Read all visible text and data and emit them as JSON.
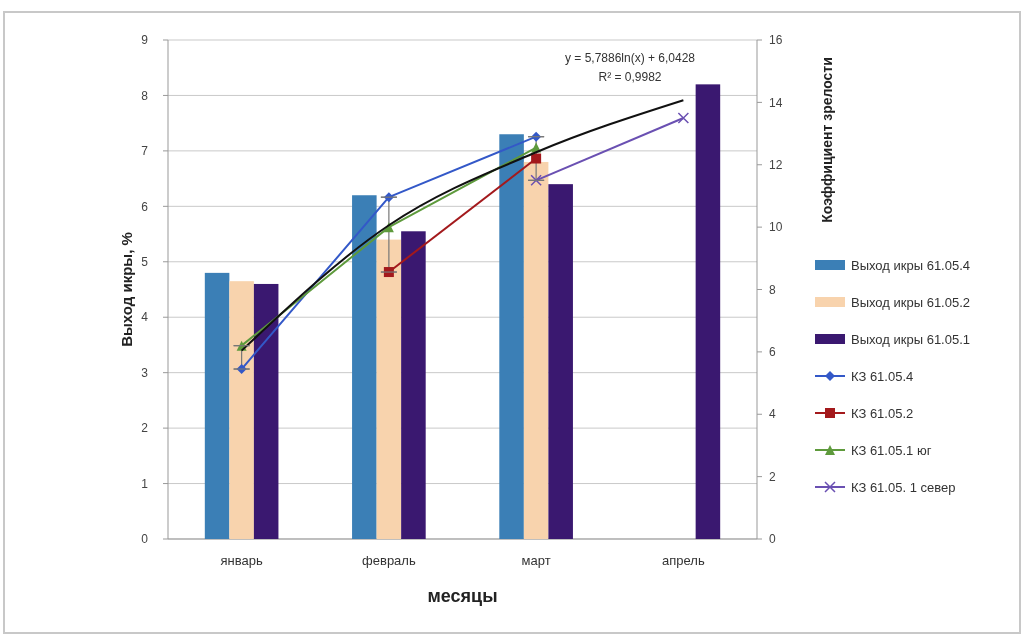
{
  "chart_data": {
    "type": "bar",
    "xlabel": "месяцы",
    "ylabel": "Выход икры, %",
    "y2label": "Коэффициент зрелости",
    "categories": [
      "январь",
      "февраль",
      "март",
      "апрель"
    ],
    "series": [
      {
        "name": "Выход икры 61.05.4",
        "color": "#3b7fb6",
        "values": [
          4.8,
          6.2,
          7.3,
          null
        ]
      },
      {
        "name": "Выход икры 61.05.2",
        "color": "#f8d3ad",
        "values": [
          4.65,
          5.4,
          6.8,
          null
        ]
      },
      {
        "name": "Выход икры 61.05.1",
        "color": "#3a1870",
        "values": [
          4.6,
          5.55,
          6.4,
          8.2
        ]
      },
      {
        "name": "КЗ 61.05.4",
        "type": "line",
        "axis": "y2",
        "color": "#3358c8",
        "marker": "diamond",
        "values": [
          5.45,
          10.96,
          12.9,
          null
        ],
        "errors": [
          [
            5.45,
            6.2
          ],
          [
            8.56,
            10.96
          ],
          [
            11.5,
            12.9
          ],
          null
        ]
      },
      {
        "name": "КЗ 61.05.2",
        "type": "line",
        "axis": "y2",
        "color": "#a3191c",
        "marker": "square",
        "values": [
          null,
          8.56,
          12.2,
          null
        ]
      },
      {
        "name": "КЗ 61.05.1 юг",
        "type": "line",
        "axis": "y2",
        "color": "#5e9a3c",
        "marker": "triangle",
        "values": [
          6.2,
          10.0,
          12.55,
          null
        ]
      },
      {
        "name": "КЗ 61.05. 1 север",
        "type": "line",
        "axis": "y2",
        "color": "#6a50b2",
        "marker": "cross",
        "values": [
          null,
          null,
          11.5,
          13.5
        ]
      },
      {
        "type": "line",
        "axis": "y2",
        "color": "#111111",
        "marker": "none",
        "values": [
          6.04,
          10.06,
          12.4,
          14.07
        ]
      }
    ],
    "ylim": [
      0,
      9
    ],
    "yticks": [
      0,
      1,
      2,
      3,
      4,
      5,
      6,
      7,
      8,
      9
    ],
    "y2lim": [
      0,
      16
    ],
    "y2ticks": [
      0,
      2,
      4,
      6,
      8,
      10,
      12,
      14,
      16
    ],
    "grid": "y",
    "legend": "right",
    "annotations": [
      "y = 5,7886ln(x) + 6,0428",
      "R² = 0,9982"
    ]
  }
}
